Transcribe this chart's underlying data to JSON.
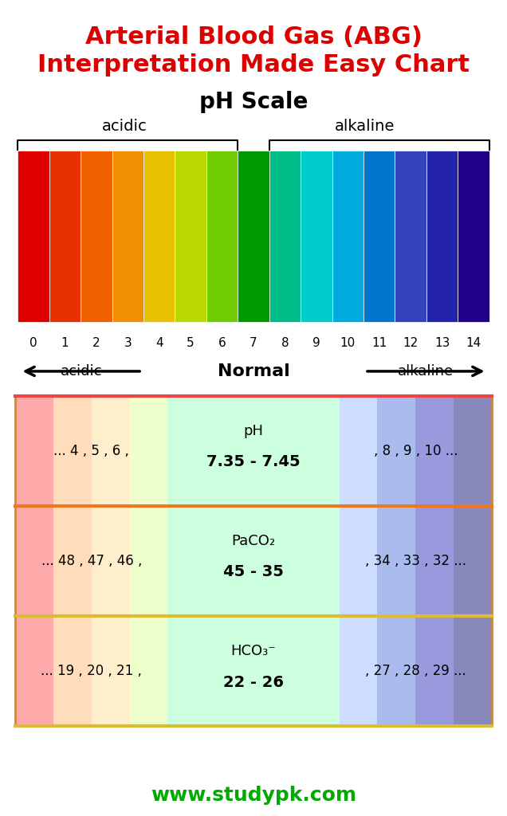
{
  "title_line1": "Arterial Blood Gas (ABG)",
  "title_line2": "Interpretation Made Easy Chart",
  "title_color": "#dd0000",
  "ph_scale_label": "pH Scale",
  "acidic_label": "acidic",
  "alkaline_label": "alkaline",
  "ph_colors": [
    "#e00000",
    "#e83000",
    "#f06000",
    "#f09000",
    "#e8c000",
    "#b8d800",
    "#70cc00",
    "#009900",
    "#00bb88",
    "#00cccc",
    "#00aadd",
    "#0077cc",
    "#3344bb",
    "#2222aa",
    "#220088"
  ],
  "ph_numbers": [
    "0",
    "1",
    "2",
    "3",
    "4",
    "5",
    "6",
    "7",
    "8",
    "9",
    "10",
    "11",
    "12",
    "13",
    "14"
  ],
  "bracket_acidic_range": [
    0,
    6
  ],
  "bracket_alkaline_range": [
    8,
    14
  ],
  "arrow_label_acidic": "acidic",
  "arrow_label_normal": "Normal",
  "arrow_label_alkaline": "alkaline",
  "table_bg_colors_left": [
    "#ffaaaa",
    "#ffcc99",
    "#ffee99",
    "#ccee99"
  ],
  "table_bg_colors_center": [
    "#ccffcc",
    "#99ddaa",
    "#88ddcc",
    "#88ccdd"
  ],
  "table_bg_colors_right": [
    "#aaddff",
    "#99aadd",
    "#aaaadd",
    "#9999cc"
  ],
  "row_colors_left": [
    "#ffbbbb",
    "#ffddbb",
    "#ffeebb"
  ],
  "row_colors_center": [
    "#ccffcc",
    "#aaddaa",
    "#aaeedd"
  ],
  "row_colors_right": [
    "#bbddff",
    "#aabbee",
    "#bbbbee"
  ],
  "row_border_left": [
    "#ee7777",
    "#ee9955",
    "#eecc55"
  ],
  "row_border_right": [
    "#7799ee",
    "#8888dd",
    "#9988cc"
  ],
  "rows": [
    {
      "label": "pH",
      "left_text": "... 4 , 5 , 6 ,",
      "center_text": "7.35 - 7.45",
      "right_text": ", 8 , 9 , 10 ..."
    },
    {
      "label": "PaCO₂",
      "left_text": "... 48 , 47 , 46 ,",
      "center_text": "45 - 35",
      "right_text": ", 34 , 33 , 32 ..."
    },
    {
      "label": "HCO₃⁻",
      "left_text": "... 19 , 20 , 21 ,",
      "center_text": "22 - 26",
      "right_text": ", 27 , 28 , 29 ..."
    }
  ],
  "website": "www.studypk.com",
  "website_color": "#00aa00"
}
